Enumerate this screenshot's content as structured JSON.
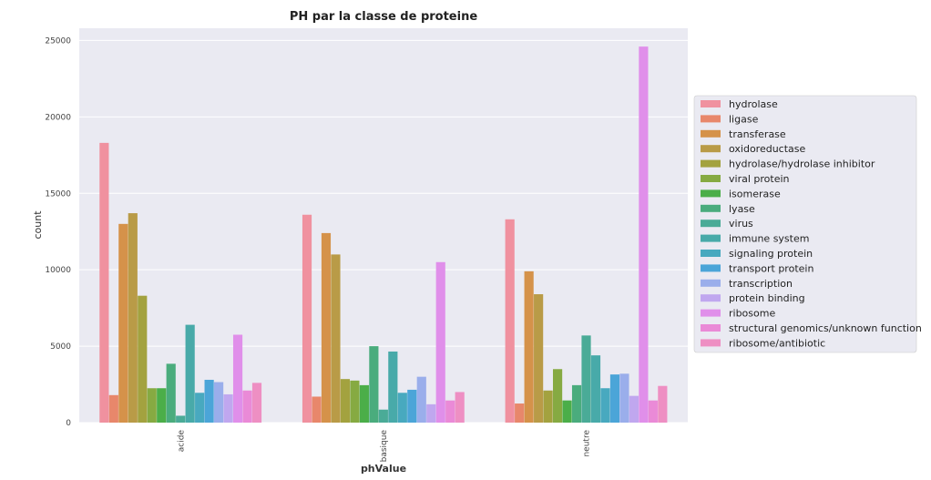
{
  "chart_data": {
    "type": "bar",
    "title": "PH par la classe de proteine",
    "xlabel": "phValue",
    "ylabel": "count",
    "categories": [
      "acide",
      "basique",
      "neutre"
    ],
    "ylim": [
      0,
      25800
    ],
    "yticks": [
      0,
      5000,
      10000,
      15000,
      20000,
      25000
    ],
    "grid": true,
    "legend_position": "right",
    "series": [
      {
        "name": "hydrolase",
        "color": "#f0919f",
        "values": [
          18300,
          13600,
          13300
        ]
      },
      {
        "name": "ligase",
        "color": "#e8876b",
        "values": [
          1800,
          1700,
          1250
        ]
      },
      {
        "name": "transferase",
        "color": "#d5924a",
        "values": [
          13000,
          12400,
          9900
        ]
      },
      {
        "name": "oxidoreductase",
        "color": "#b99b47",
        "values": [
          13700,
          11000,
          8400
        ]
      },
      {
        "name": "hydrolase/hydrolase inhibitor",
        "color": "#a3a23f",
        "values": [
          8300,
          2850,
          2100
        ]
      },
      {
        "name": "viral protein",
        "color": "#86aa42",
        "values": [
          2250,
          2750,
          3500
        ]
      },
      {
        "name": "isomerase",
        "color": "#4bae49",
        "values": [
          2250,
          2450,
          1450
        ]
      },
      {
        "name": "lyase",
        "color": "#4aac7d",
        "values": [
          3850,
          5000,
          2450
        ]
      },
      {
        "name": "virus",
        "color": "#4aab97",
        "values": [
          450,
          850,
          5700
        ]
      },
      {
        "name": "immune system",
        "color": "#48aaa9",
        "values": [
          6400,
          4650,
          4400
        ]
      },
      {
        "name": "signaling protein",
        "color": "#48a9bf",
        "values": [
          1950,
          1950,
          2250
        ]
      },
      {
        "name": "transport protein",
        "color": "#4ba5d8",
        "values": [
          2800,
          2150,
          3150
        ]
      },
      {
        "name": "transcription",
        "color": "#9aaeeb",
        "values": [
          2650,
          3000,
          3200
        ]
      },
      {
        "name": "protein binding",
        "color": "#c0a7ef",
        "values": [
          1850,
          1200,
          1750
        ]
      },
      {
        "name": "ribosome",
        "color": "#e08fea",
        "values": [
          5750,
          10500,
          24600
        ]
      },
      {
        "name": "structural genomics/unknown function",
        "color": "#ea8ad7",
        "values": [
          2100,
          1450,
          1450
        ]
      },
      {
        "name": "ribosome/antibiotic",
        "color": "#ee8fc3",
        "values": [
          2600,
          2000,
          2400
        ]
      }
    ]
  }
}
